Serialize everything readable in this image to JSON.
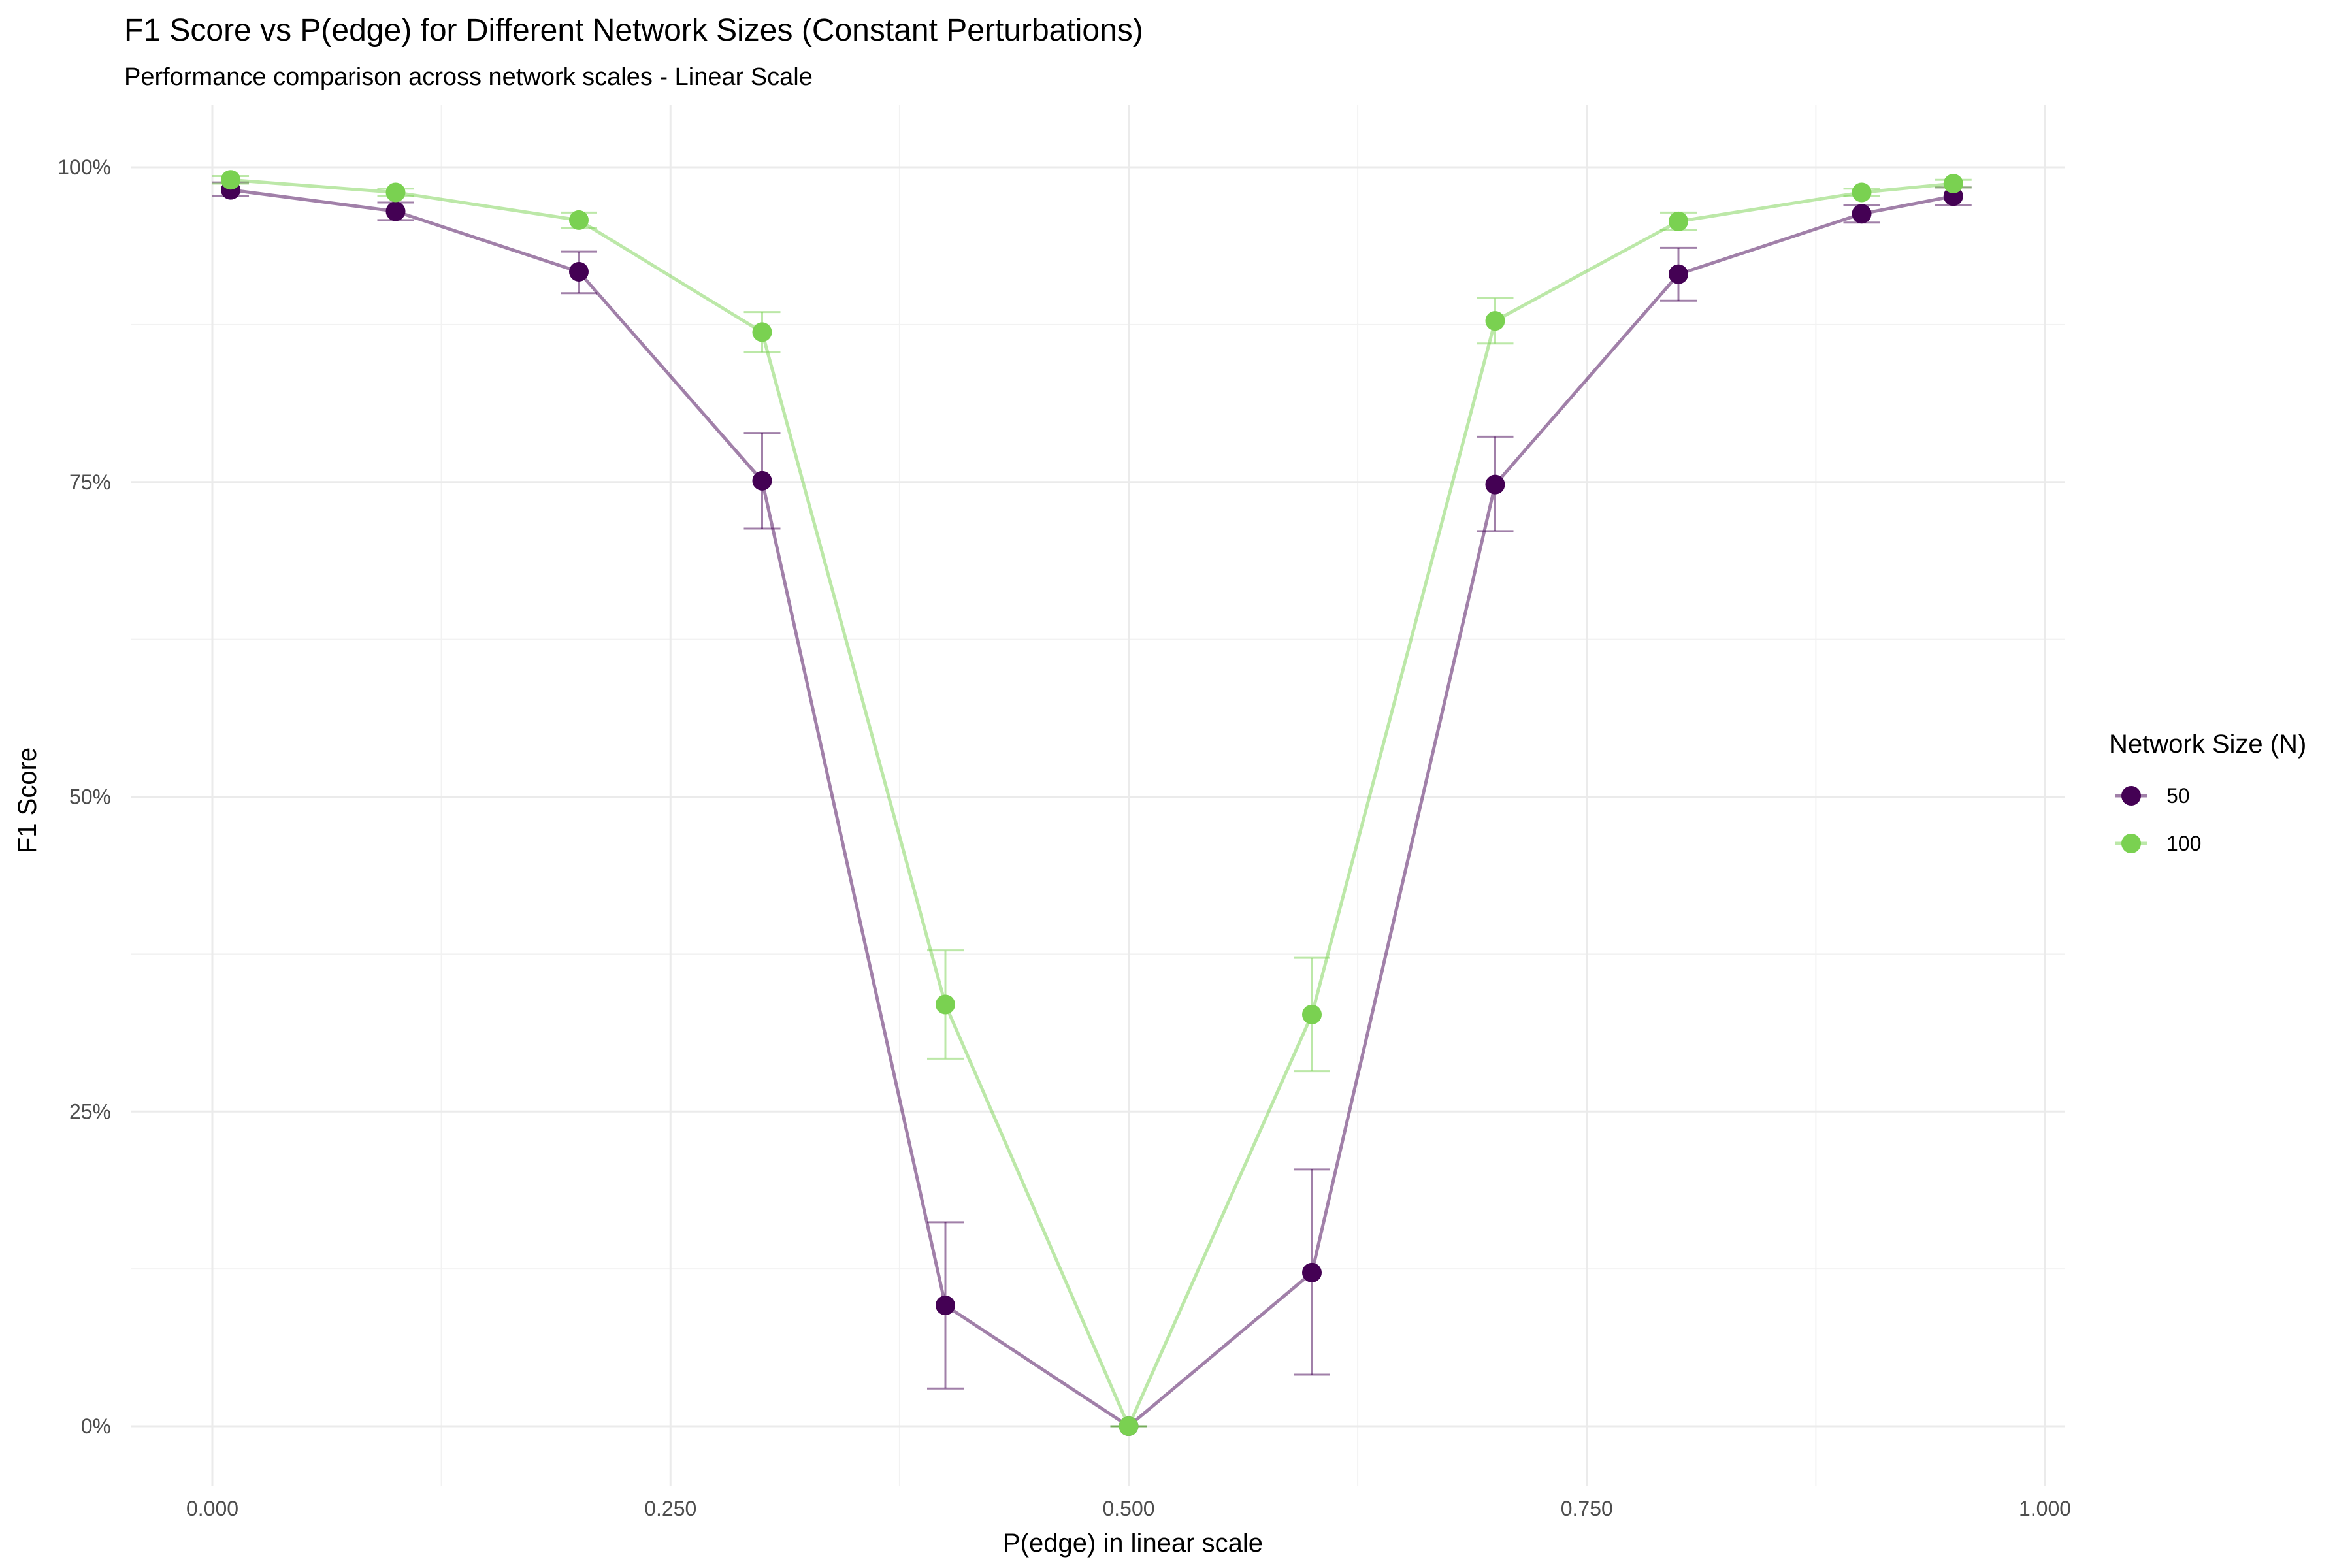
{
  "chart_data": {
    "type": "line",
    "title": "F1 Score vs P(edge) for Different Network Sizes (Constant Perturbations)",
    "subtitle": "Performance comparison across network scales - Linear Scale",
    "xlabel": "P(edge) in linear scale",
    "ylabel": "F1 Score",
    "xlim": [
      0,
      1
    ],
    "ylim": [
      0,
      1
    ],
    "x_ticks": [
      0,
      0.25,
      0.5,
      0.75,
      1
    ],
    "x_tick_labels": [
      "0.000",
      "0.250",
      "0.500",
      "0.750",
      "1.000"
    ],
    "y_ticks": [
      0,
      0.25,
      0.5,
      0.75,
      1
    ],
    "y_tick_labels": [
      "0%",
      "25%",
      "50%",
      "75%",
      "100%"
    ],
    "grid": true,
    "legend": {
      "title": "Network Size (N)",
      "placement": "right"
    },
    "x": [
      0.01,
      0.1,
      0.2,
      0.3,
      0.4,
      0.5,
      0.6,
      0.7,
      0.8,
      0.9,
      0.95
    ],
    "series": [
      {
        "name": "50",
        "color": "#440154",
        "values": [
          0.982,
          0.965,
          0.917,
          0.751,
          0.096,
          0.0,
          0.122,
          0.748,
          0.915,
          0.963,
          0.977
        ],
        "err_low": [
          0.977,
          0.958,
          0.9,
          0.713,
          0.03,
          0.0,
          0.041,
          0.711,
          0.894,
          0.956,
          0.97
        ],
        "err_high": [
          0.988,
          0.972,
          0.933,
          0.789,
          0.162,
          0.0,
          0.204,
          0.786,
          0.936,
          0.97,
          0.984
        ]
      },
      {
        "name": "100",
        "color": "#7AD151",
        "values": [
          0.99,
          0.98,
          0.958,
          0.869,
          0.335,
          0.0,
          0.327,
          0.878,
          0.957,
          0.98,
          0.987
        ],
        "err_low": [
          0.987,
          0.977,
          0.952,
          0.853,
          0.292,
          0.0,
          0.282,
          0.86,
          0.95,
          0.977,
          0.984
        ],
        "err_high": [
          0.993,
          0.983,
          0.964,
          0.885,
          0.378,
          0.0,
          0.372,
          0.896,
          0.964,
          0.983,
          0.99
        ]
      }
    ]
  }
}
